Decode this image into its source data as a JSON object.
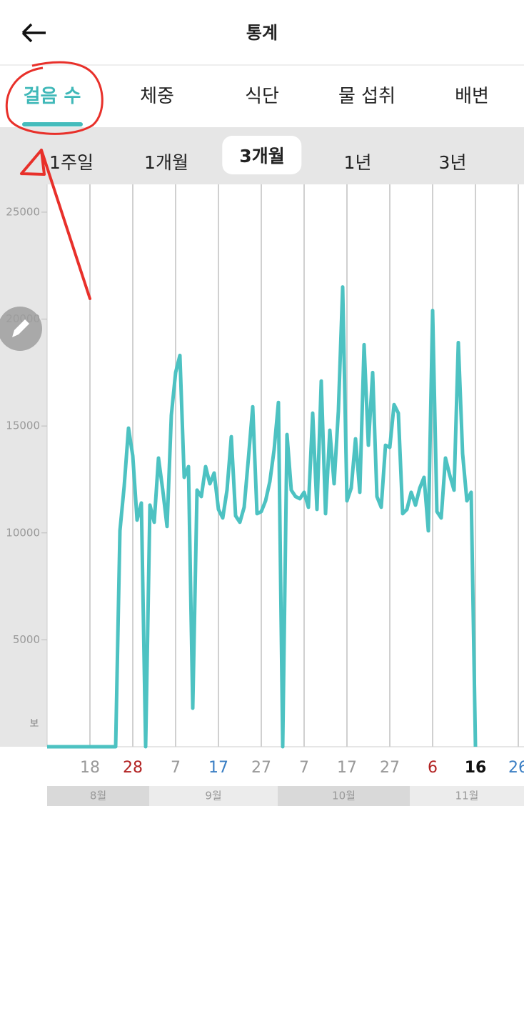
{
  "header": {
    "title": "통계"
  },
  "tabs": {
    "items": [
      "걸음 수",
      "체중",
      "식단",
      "물 섭취",
      "배변"
    ],
    "active": 0
  },
  "periods": {
    "items": [
      "1주일",
      "1개월",
      "3개월",
      "1년",
      "3년"
    ],
    "active": 2
  },
  "chart_data": {
    "type": "line",
    "color": "#4dc2c2",
    "categories": [
      null,
      null,
      null,
      null,
      null,
      null,
      null,
      null,
      null,
      null,
      "18",
      null,
      null,
      null,
      null,
      null,
      null,
      null,
      null,
      null,
      "28",
      null,
      null,
      null,
      null,
      null,
      null,
      null,
      null,
      null,
      "7",
      null,
      null,
      null,
      null,
      null,
      null,
      null,
      null,
      null,
      "17",
      null,
      null,
      null,
      null,
      null,
      null,
      null,
      null,
      null,
      "27",
      null,
      null,
      null,
      null,
      null,
      null,
      null,
      null,
      null,
      "7",
      null,
      null,
      null,
      null,
      null,
      null,
      null,
      null,
      null,
      "17",
      null,
      null,
      null,
      null,
      null,
      null,
      null,
      null,
      null,
      "27",
      null,
      null,
      null,
      null,
      null,
      null,
      null,
      null,
      null,
      "6",
      null,
      null,
      null,
      null,
      null,
      null,
      null,
      null,
      null,
      "16",
      null,
      null,
      null,
      null,
      null,
      null,
      null,
      null,
      null,
      "26"
    ],
    "xtick_colors": [
      "#999999",
      "#b22222",
      "#999999",
      "#3b7fc4",
      "#999999",
      "#999999",
      "#999999",
      "#999999",
      "#b22222",
      "#111111",
      "#3b7fc4"
    ],
    "values": [
      0,
      0,
      0,
      0,
      0,
      0,
      0,
      0,
      0,
      0,
      0,
      0,
      0,
      0,
      0,
      0,
      0,
      10100,
      12200,
      14900,
      13600,
      10600,
      11400,
      0,
      11300,
      10500,
      13500,
      12000,
      10300,
      15500,
      17500,
      18300,
      12600,
      13100,
      1800,
      12000,
      11700,
      13100,
      12300,
      12800,
      11100,
      10700,
      12000,
      14500,
      10800,
      10500,
      11200,
      13500,
      15900,
      10900,
      11000,
      11500,
      12400,
      13900,
      16100,
      0,
      14600,
      12000,
      11700,
      11600,
      11900,
      11200,
      15600,
      11100,
      17100,
      10900,
      14800,
      12300,
      15700,
      21500,
      11500,
      12100,
      14400,
      11900,
      18800,
      14100,
      17500,
      11700,
      11200,
      14100,
      14000,
      16000,
      15600,
      10900,
      11100,
      11900,
      11300,
      12100,
      12600,
      10100,
      20400,
      11000,
      10700,
      13500,
      12700,
      12000,
      18900,
      13700,
      11500,
      11900,
      0,
      null,
      null,
      null,
      null,
      null,
      null,
      null,
      null,
      null,
      null
    ],
    "ylim": [
      0,
      26300
    ],
    "yticks": [
      5000,
      10000,
      15000,
      20000,
      25000
    ],
    "y_unit": "보",
    "months": [
      "8월",
      "9월",
      "10월",
      "11월"
    ],
    "grid": true
  }
}
